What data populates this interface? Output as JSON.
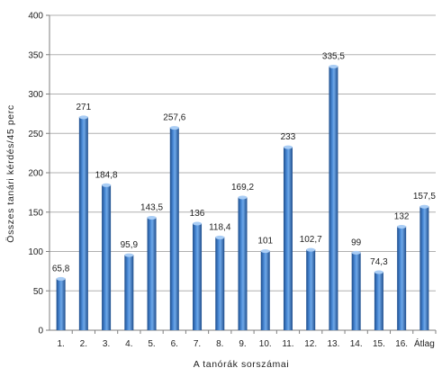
{
  "chart_data": {
    "type": "bar",
    "xlabel": "A tanórák sorszámai",
    "ylabel": "Összes tanári kérdés/45 perc",
    "ylim": [
      0,
      400
    ],
    "yticks": [
      0,
      50,
      100,
      150,
      200,
      250,
      300,
      350,
      400
    ],
    "categories": [
      "1.",
      "2.",
      "3.",
      "4.",
      "5.",
      "6.",
      "7.",
      "8.",
      "9.",
      "10.",
      "11.",
      "12.",
      "13.",
      "14.",
      "15.",
      "16.",
      "Átlag"
    ],
    "values": [
      65.8,
      271,
      184.8,
      95.9,
      143.5,
      257.6,
      136,
      118.4,
      169.2,
      101,
      233,
      102.7,
      335.5,
      99,
      74.3,
      132,
      157.5
    ],
    "data_labels": [
      "65,8",
      "271",
      "184,8",
      "95,9",
      "143,5",
      "257,6",
      "136",
      "118,4",
      "169,2",
      "101",
      "233",
      "102,7",
      "335,5",
      "99",
      "74,3",
      "132",
      "157,5"
    ],
    "grid": true,
    "legend": "none",
    "colors": {
      "bar_dark": "#1e4d8c",
      "bar_mid": "#3f7fcf",
      "bar_light": "#6fa8e8",
      "bar_top": "#a9cdf5",
      "grid": "#b0b0b0",
      "axis": "#7f7f7f"
    }
  }
}
